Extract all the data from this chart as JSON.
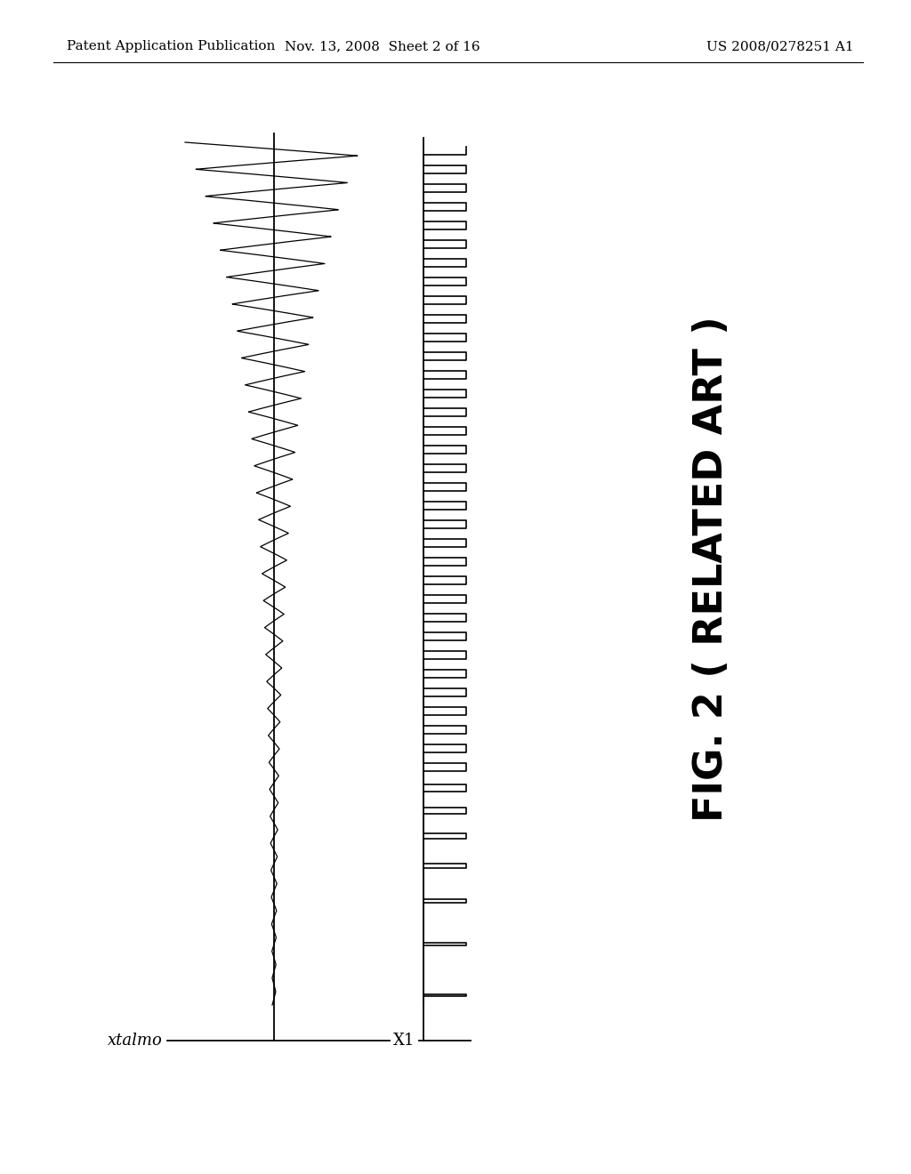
{
  "header_left": "Patent Application Publication",
  "header_mid": "Nov. 13, 2008  Sheet 2 of 16",
  "header_right": "US 2008/0278251 A1",
  "fig_label": "FIG. 2 ( RELATED ART )",
  "signal1_label": "xtalmo",
  "signal2_label": "X1",
  "bg_color": "#ffffff",
  "line_color": "#000000",
  "header_fontsize": 11,
  "label_fontsize": 13,
  "fig_label_fontsize": 32
}
